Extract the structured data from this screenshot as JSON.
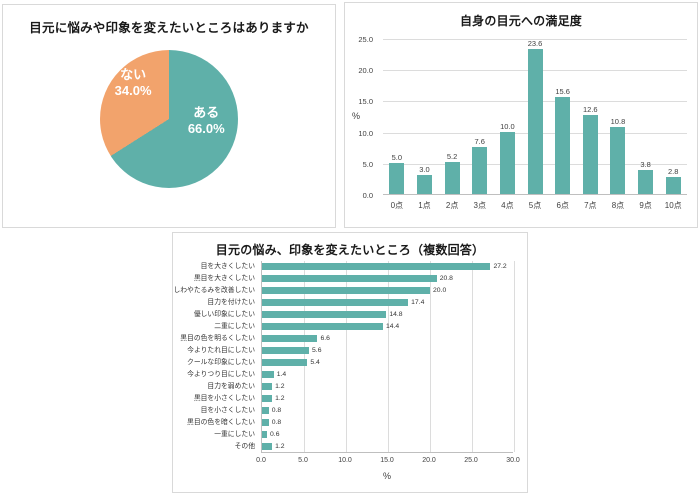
{
  "colors": {
    "teal": "#5FB0A9",
    "orange": "#F2A36C"
  },
  "chart_data": [
    {
      "type": "pie",
      "title": "目元に悩みや印象を変えたいところはありますか",
      "labels": [
        "ある",
        "ない"
      ],
      "values": [
        66.0,
        34.0
      ],
      "display_values": [
        "66.0%",
        "34.0%"
      ],
      "colors": [
        "#5FB0A9",
        "#F2A36C"
      ]
    },
    {
      "type": "bar",
      "title": "自身の目元への満足度",
      "categories": [
        "0点",
        "1点",
        "2点",
        "3点",
        "4点",
        "5点",
        "6点",
        "7点",
        "8点",
        "9点",
        "10点"
      ],
      "values": [
        5.0,
        3.0,
        5.2,
        7.6,
        10.0,
        23.6,
        15.6,
        12.6,
        10.8,
        3.8,
        2.8
      ],
      "ylabel": "%",
      "ylim": [
        0,
        25
      ],
      "yticks": [
        0,
        5,
        10,
        15,
        20,
        25
      ],
      "grid": true,
      "bar_color": "#5FB0A9"
    },
    {
      "type": "bar-horizontal",
      "title": "目元の悩み、印象を変えたいところ（複数回答）",
      "categories": [
        "目を大きくしたい",
        "黒目を大きくしたい",
        "しわやたるみを改善したい",
        "目力を付けたい",
        "優しい印象にしたい",
        "二重にしたい",
        "黒目の色を明るくしたい",
        "今よりたれ目にしたい",
        "クールな印象にしたい",
        "今よりつり目にしたい",
        "目力を弱めたい",
        "黒目を小さくしたい",
        "目を小さくしたい",
        "黒目の色を暗くしたい",
        "一重にしたい",
        "その他"
      ],
      "values": [
        27.2,
        20.8,
        20.0,
        17.4,
        14.8,
        14.4,
        6.6,
        5.6,
        5.4,
        1.4,
        1.2,
        1.2,
        0.8,
        0.8,
        0.6,
        1.2
      ],
      "xlabel": "%",
      "xlim": [
        0,
        30
      ],
      "xticks": [
        0,
        5,
        10,
        15,
        20,
        25,
        30
      ],
      "grid": true,
      "bar_color": "#5FB0A9"
    }
  ]
}
